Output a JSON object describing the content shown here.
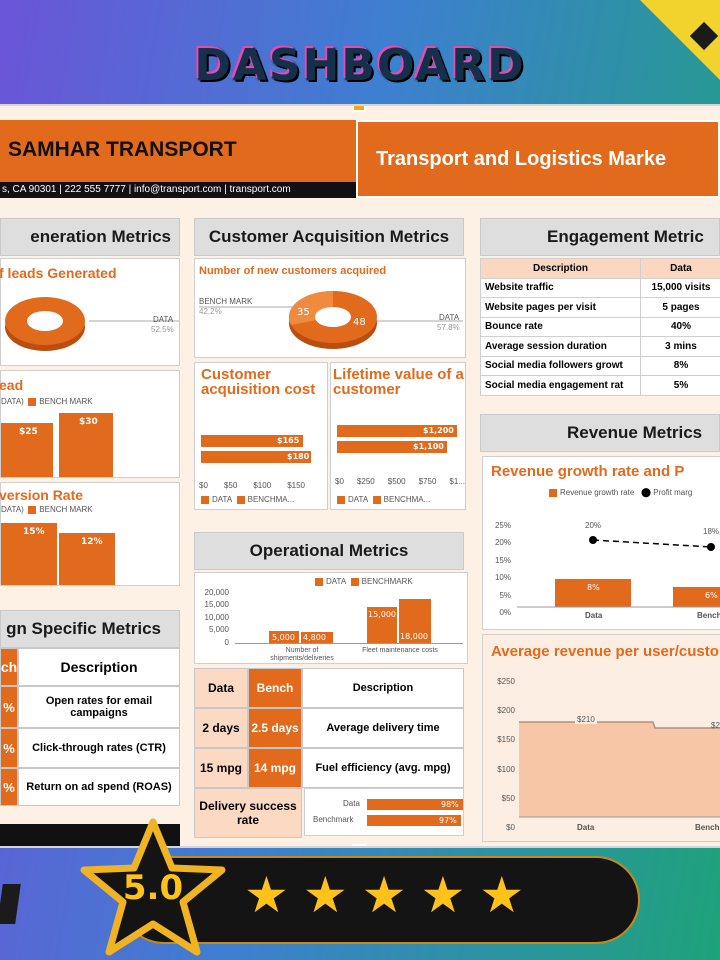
{
  "page": {
    "title": "DASHBOARD",
    "rating": "5.0",
    "star_count": 5
  },
  "company": {
    "name": "SAMHAR TRANSPORT",
    "contact": "s, CA 90301 | 222 555 7777 | info@transport.com | transport.com",
    "banner": "Transport and Logistics Marke"
  },
  "lead": {
    "title": "eneration Metrics",
    "leads_generated": "f leads Generated",
    "data_label": "DATA",
    "data_value": "52.5%",
    "lead_title": "ead",
    "legend_data": "DATA)",
    "legend_bench": "BENCH MARK",
    "bar_values": [
      "$25",
      "$30"
    ],
    "conv_title": "version Rate",
    "conv_values": [
      "15%",
      "12%"
    ]
  },
  "campaign": {
    "title": "gn Specific Metrics",
    "headers": [
      "ch",
      "Description"
    ],
    "rows": [
      {
        "val": "%",
        "desc": "Open rates for email campaigns"
      },
      {
        "val": "%",
        "desc": "Click-through rates (CTR)"
      },
      {
        "val": "%",
        "desc": "Return on ad spend (ROAS)"
      }
    ]
  },
  "acq": {
    "title": "Customer Acquisition Metrics",
    "new_customers": "Number of new customers acquired",
    "bench_label": "BENCH MARK",
    "bench_value": "42.2%",
    "data_label": "DATA",
    "data_value": "57.8%",
    "slice_bench": "35",
    "slice_data": "48",
    "cac_title": "Customer acquisition cost",
    "cac_values": [
      "$165",
      "$180"
    ],
    "cac_ticks": [
      "$0",
      "$50",
      "$100",
      "$150"
    ],
    "ltv_title": "Lifetime value of a customer",
    "ltv_values": [
      "$1,200",
      "$1,100"
    ],
    "ltv_ticks": [
      "$0",
      "$250",
      "$500",
      "$750",
      "$1..."
    ],
    "legend_data": "DATA",
    "legend_bench": "BENCHMA..."
  },
  "ops": {
    "title": "Operational Metrics",
    "legend": [
      "DATA",
      "BENCHMARK"
    ],
    "y_ticks": [
      "20,000",
      "15,000",
      "10,000",
      "5,000",
      "0"
    ],
    "groups": [
      {
        "label": "Number of shipments/deliveries",
        "data": "5,000",
        "bench": "4,800"
      },
      {
        "label": "Fleet maintenance costs",
        "data": "15,000",
        "bench": "18,000"
      }
    ],
    "headers": [
      "Data",
      "Bench",
      "Description"
    ],
    "rows": [
      {
        "data": "2 days",
        "bench": "2.5 days",
        "desc": "Average delivery time"
      },
      {
        "data": "15 mpg",
        "bench": "14 mpg",
        "desc": "Fuel efficiency (avg. mpg)"
      }
    ],
    "delivery_label": "Delivery success rate",
    "delivery_bars": [
      {
        "name": "Data",
        "val": "98%"
      },
      {
        "name": "Benchmark",
        "val": "97%"
      }
    ]
  },
  "engagement": {
    "title": "Engagement Metric",
    "headers": [
      "Description",
      "Data"
    ],
    "rows": [
      [
        "Website traffic",
        "15,000 visits"
      ],
      [
        "Website pages per visit",
        "5 pages"
      ],
      [
        "Bounce rate",
        "40%"
      ],
      [
        "Average session duration",
        "3 mins"
      ],
      [
        "Social media followers growt",
        "8%"
      ],
      [
        "Social media engagement rat",
        "5%"
      ]
    ]
  },
  "revenue": {
    "title": "Revenue Metrics",
    "growth_title": "Revenue growth rate and P",
    "legend": [
      "Revenue growth rate",
      "Profit marg"
    ],
    "y_ticks": [
      "25%",
      "20%",
      "15%",
      "10%",
      "5%",
      "0%"
    ],
    "cats": [
      "Data",
      "Benchm"
    ],
    "bar_labels": [
      "8%",
      "6%"
    ],
    "point_labels": [
      "20%",
      "18%"
    ],
    "arpu_title": "Average revenue per user/custo",
    "arpu_ticks": [
      "$250",
      "$200",
      "$150",
      "$100",
      "$50",
      "$0"
    ],
    "arpu_labels": [
      "$210",
      "$2"
    ],
    "arpu_cats": [
      "Data",
      "Bench"
    ]
  },
  "chart_data": [
    {
      "type": "bar",
      "title": "ead",
      "categories": [
        "DATA",
        "BENCH MARK"
      ],
      "values": [
        25,
        30
      ]
    },
    {
      "type": "bar",
      "title": "version Rate",
      "categories": [
        "DATA",
        "BENCH MARK"
      ],
      "values": [
        15,
        12
      ]
    },
    {
      "type": "pie",
      "title": "Number of new customers acquired",
      "categories": [
        "DATA",
        "BENCH MARK"
      ],
      "values": [
        57.8,
        42.2
      ]
    },
    {
      "type": "bar",
      "title": "Customer acquisition cost",
      "categories": [
        "DATA",
        "BENCHMA..."
      ],
      "values": [
        165,
        180
      ]
    },
    {
      "type": "bar",
      "title": "Lifetime value of a customer",
      "categories": [
        "DATA",
        "BENCHMA..."
      ],
      "values": [
        1200,
        1100
      ]
    },
    {
      "type": "bar",
      "categories": [
        "Number of shipments/deliveries",
        "Fleet maintenance costs"
      ],
      "series": [
        {
          "name": "DATA",
          "values": [
            5000,
            15000
          ]
        },
        {
          "name": "BENCHMARK",
          "values": [
            4800,
            18000
          ]
        }
      ],
      "ylim": [
        0,
        20000
      ]
    },
    {
      "type": "bar",
      "title": "Delivery success rate",
      "categories": [
        "Data",
        "Benchmark"
      ],
      "values": [
        98,
        97
      ]
    },
    {
      "type": "bar",
      "title": "Revenue growth rate and P",
      "categories": [
        "Data",
        "Benchm"
      ],
      "series": [
        {
          "name": "Revenue growth rate",
          "values": [
            8,
            6
          ]
        },
        {
          "name": "Profit marg",
          "values": [
            20,
            18
          ]
        }
      ],
      "ylim": [
        0,
        25
      ]
    },
    {
      "type": "area",
      "title": "Average revenue per user/custo",
      "categories": [
        "Data",
        "Bench"
      ],
      "values": [
        210,
        200
      ],
      "ylim": [
        0,
        250
      ]
    }
  ]
}
